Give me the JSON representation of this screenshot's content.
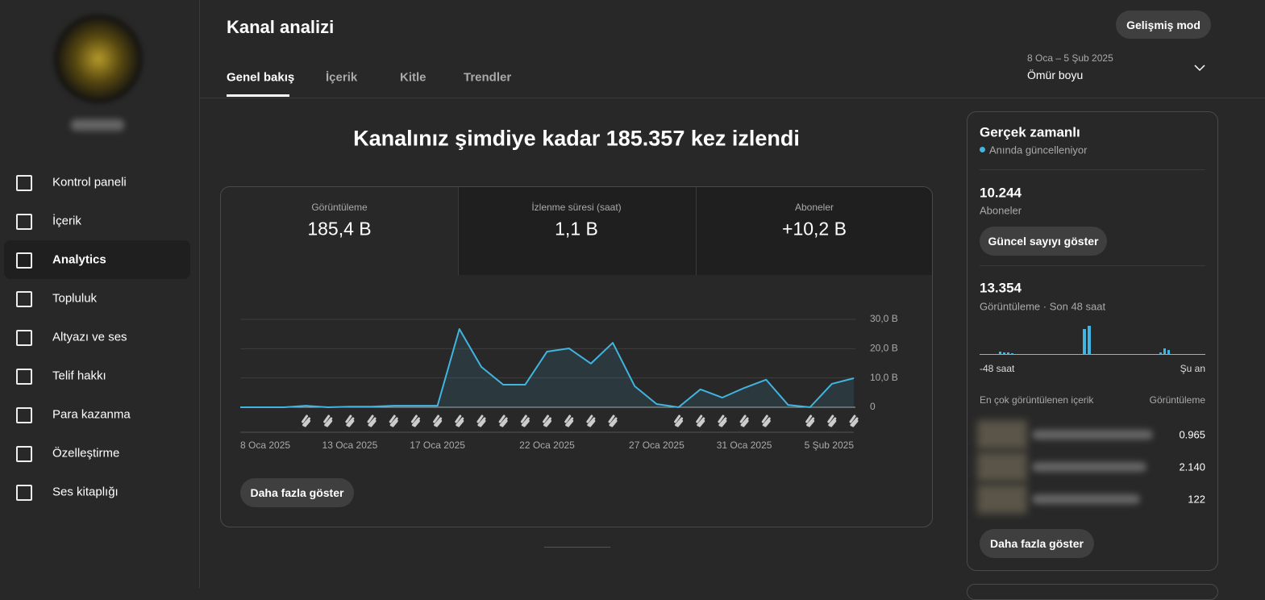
{
  "sidebar": {
    "nav": [
      "Kontrol paneli",
      "İçerik",
      "Analytics",
      "Topluluk",
      "Altyazı ve ses",
      "Telif hakkı",
      "Para kazanma",
      "Özelleştirme",
      "Ses kitaplığı"
    ]
  },
  "header": {
    "title": "Kanal analizi",
    "advanced_button": "Gelişmiş mod",
    "tabs": [
      "Genel bakış",
      "İçerik",
      "Kitle",
      "Trendler"
    ],
    "date_range": "8 Oca – 5 Şub 2025",
    "period": "Ömür boyu"
  },
  "summary": {
    "headline": "Kanalınız şimdiye kadar 185.357 kez izlendi",
    "metrics": [
      {
        "label": "Görüntüleme",
        "value": "185,4 B"
      },
      {
        "label": "İzlenme süresi (saat)",
        "value": "1,1 B"
      },
      {
        "label": "Aboneler",
        "value": "+10,2 B"
      }
    ],
    "more_button": "Daha fazla göster"
  },
  "chart_data": {
    "type": "line",
    "color": "#41b4e0",
    "categories": [
      "8 Oca 2025",
      null,
      null,
      null,
      null,
      "13 Oca 2025",
      null,
      null,
      null,
      "17 Oca 2025",
      null,
      null,
      null,
      null,
      "22 Oca 2025",
      null,
      null,
      null,
      null,
      "27 Oca 2025",
      null,
      null,
      null,
      "31 Oca 2025",
      null,
      null,
      null,
      null,
      "5 Şub 2025"
    ],
    "values": [
      0,
      0,
      0,
      0.5,
      0,
      0.2,
      0.2,
      0.5,
      0.5,
      0.5,
      26.7,
      13.8,
      7.7,
      7.7,
      19,
      20.1,
      14.9,
      22,
      7.2,
      1.1,
      0,
      6.1,
      3.3,
      6.6,
      9.4,
      0.8,
      0,
      8,
      9.9
    ],
    "ylim": [
      0,
      30
    ],
    "yticks": [
      0,
      {
        "value": 10,
        "label": "10,0 B"
      },
      {
        "value": 20,
        "label": "20,0 B"
      },
      {
        "value": 30,
        "label": "30,0 B"
      }
    ],
    "grid": true
  },
  "realtime": {
    "title": "Gerçek zamanlı",
    "status": "Anında güncelleniyor",
    "subscribers": "10.244",
    "subscribers_label": "Aboneler",
    "count_button": "Güncel sayıyı göster",
    "views": "13.354",
    "views_label": "Görüntüleme · Son 48 saat",
    "axis_start": "-48 saat",
    "axis_end": "Şu an",
    "top_content_label": "En çok görüntülenen içerik",
    "top_views_label": "Görüntüleme",
    "top_views": [
      "0.965",
      "2.140",
      "122"
    ],
    "more_button": "Daha fazla göster"
  }
}
